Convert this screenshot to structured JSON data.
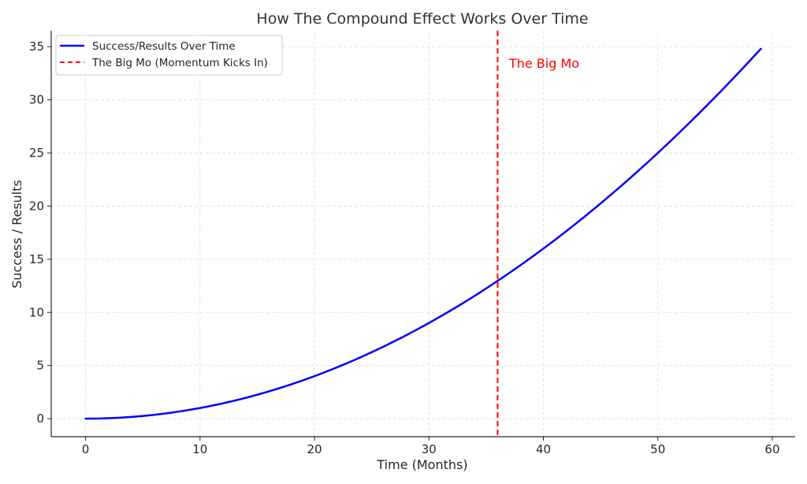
{
  "chart_data": {
    "type": "line",
    "title": "How The Compound Effect Works Over Time",
    "xlabel": "Time (Months)",
    "ylabel": "Success / Results",
    "xlim": [
      -3,
      62
    ],
    "ylim": [
      -1.7,
      36.5
    ],
    "xticks": [
      0,
      10,
      20,
      30,
      40,
      50,
      60
    ],
    "yticks": [
      0,
      5,
      10,
      15,
      20,
      25,
      30,
      35
    ],
    "grid": true,
    "legend_position": "top-left",
    "series": [
      {
        "name": "Success/Results Over Time",
        "color": "#0000ff",
        "style": "solid",
        "x": [
          0,
          5,
          10,
          15,
          20,
          25,
          30,
          36,
          40,
          45,
          50,
          55,
          59
        ],
        "y": [
          0,
          0.25,
          1.0,
          2.25,
          4.0,
          6.25,
          9.0,
          12.96,
          16.0,
          20.25,
          25.0,
          30.25,
          34.8
        ]
      }
    ],
    "vlines": [
      {
        "name": "The Big Mo (Momentum Kicks In)",
        "x": 36,
        "color": "#ff0000",
        "style": "dashed"
      }
    ],
    "annotations": [
      {
        "text": "The Big Mo",
        "x": 37,
        "y": 33,
        "color": "#ff0000"
      }
    ]
  }
}
